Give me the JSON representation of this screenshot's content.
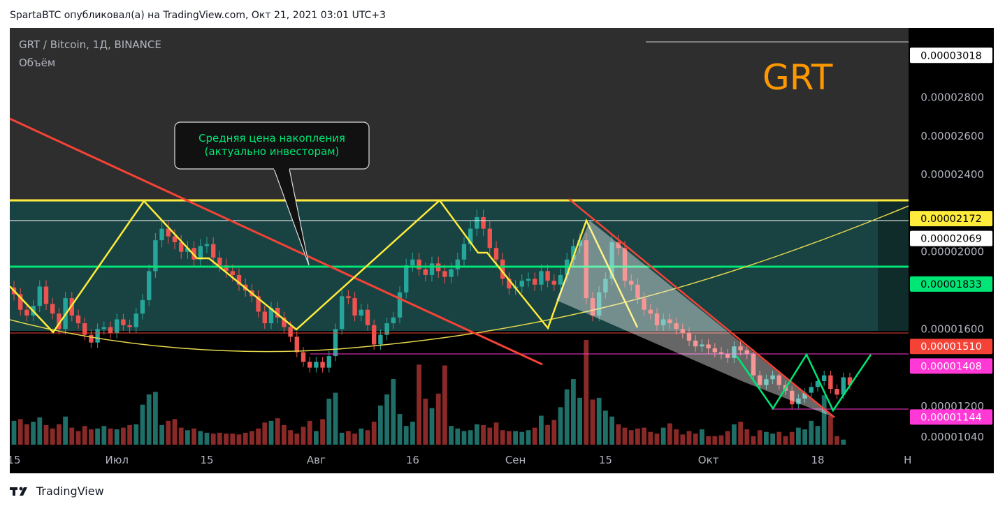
{
  "header": {
    "publish_line": "SpartaBTC опубликовал(а) на TradingView.com, Окт 21, 2021 03:01 UTC+3"
  },
  "chart": {
    "symbol_line": "GRT / Bitcoin, 1Д, BINANCE",
    "volume_label": "Объём",
    "big_label": "GRT",
    "callout_line1": "Средняя цена накопления",
    "callout_line2": "(актуально инвесторам)"
  },
  "footer": {
    "brand": "TradingView"
  },
  "colors": {
    "background": "#000000",
    "zone": "#2b7a78",
    "upper_band": "#2e2e2e",
    "up": "#26a69a",
    "down": "#ef5350",
    "yellow": "#ffeb3b",
    "green_line": "#00e676",
    "red_trend": "#f44336",
    "pink": "#ff38d6",
    "big_label": "#ff9800",
    "callout_text": "#00e676"
  },
  "chart_data": {
    "type": "candlestick",
    "y_range": [
      9.9e-06,
      3.16e-05
    ],
    "x_axis_labels": [
      {
        "label": "15",
        "day": 0
      },
      {
        "label": "Июл",
        "day": 16
      },
      {
        "label": "15",
        "day": 30
      },
      {
        "label": "Авг",
        "day": 47
      },
      {
        "label": "16",
        "day": 62
      },
      {
        "label": "Сен",
        "day": 78
      },
      {
        "label": "15",
        "day": 92
      },
      {
        "label": "Окт",
        "day": 108
      },
      {
        "label": "18",
        "day": 125
      },
      {
        "label": "Н",
        "day": 139
      }
    ],
    "y_axis_ticks": [
      {
        "label": "0.00002800",
        "value": 2.8e-05
      },
      {
        "label": "0.00002600",
        "value": 2.6e-05
      },
      {
        "label": "0.00002400",
        "value": 2.4e-05
      },
      {
        "label": "0.00002000",
        "value": 2e-05
      },
      {
        "label": "0.00001600",
        "value": 1.6e-05
      },
      {
        "label": "0.00001200",
        "value": 1.2e-05
      },
      {
        "label": "0.00001040",
        "value": 1.04e-05
      }
    ],
    "price_markers": [
      {
        "label": "0.00003018",
        "value": 3.018e-05,
        "bg": "#ffffff",
        "fg": "#000000"
      },
      {
        "label": "0.00002172",
        "value": 2.172e-05,
        "bg": "#ffeb3b",
        "fg": "#000000"
      },
      {
        "label": "0.00002069",
        "value": 2.069e-05,
        "bg": "#ffffff",
        "fg": "#000000"
      },
      {
        "label": "0.00001833",
        "value": 1.833e-05,
        "bg": "#00e676",
        "fg": "#000000"
      },
      {
        "label": "0.00001510",
        "value": 1.51e-05,
        "bg": "#f44336",
        "fg": "#ffffff"
      },
      {
        "label": "0.00001408",
        "value": 1.408e-05,
        "bg": "#ff38d6",
        "fg": "#ffffff"
      },
      {
        "label": "0.00001144",
        "value": 1.144e-05,
        "bg": "#ff38d6",
        "fg": "#ffffff"
      }
    ],
    "closes": [
      1.78e-05,
      1.7e-05,
      1.67e-05,
      1.72e-05,
      1.82e-05,
      1.73e-05,
      1.68e-05,
      1.6e-05,
      1.76e-05,
      1.67e-05,
      1.63e-05,
      1.57e-05,
      1.53e-05,
      1.6e-05,
      1.61e-05,
      1.58e-05,
      1.65e-05,
      1.62e-05,
      1.61e-05,
      1.68e-05,
      1.75e-05,
      1.9e-05,
      2.06e-05,
      2.12e-05,
      2.08e-05,
      2.05e-05,
      2e-05,
      2.02e-05,
      1.96e-05,
      2.03e-05,
      2.04e-05,
      1.97e-05,
      1.93e-05,
      1.9e-05,
      1.88e-05,
      1.83e-05,
      1.8e-05,
      1.77e-05,
      1.69e-05,
      1.63e-05,
      1.71e-05,
      1.66e-05,
      1.61e-05,
      1.56e-05,
      1.48e-05,
      1.43e-05,
      1.4e-05,
      1.43e-05,
      1.4e-05,
      1.46e-05,
      1.6e-05,
      1.77e-05,
      1.76e-05,
      1.67e-05,
      1.7e-05,
      1.62e-05,
      1.52e-05,
      1.57e-05,
      1.63e-05,
      1.66e-05,
      1.79e-05,
      1.93e-05,
      1.96e-05,
      1.91e-05,
      1.88e-05,
      1.94e-05,
      1.9e-05,
      1.87e-05,
      1.91e-05,
      1.96e-05,
      2.04e-05,
      2.12e-05,
      2.18e-05,
      2.12e-05,
      2.02e-05,
      1.96e-05,
      1.86e-05,
      1.81e-05,
      1.82e-05,
      1.85e-05,
      1.86e-05,
      1.83e-05,
      1.9e-05,
      1.85e-05,
      1.83e-05,
      1.88e-05,
      1.96e-05,
      2.03e-05,
      2.06e-05,
      1.76e-05,
      1.67e-05,
      1.79e-05,
      1.86e-05,
      2.05e-05,
      2.02e-05,
      1.85e-05,
      1.83e-05,
      1.76e-05,
      1.7e-05,
      1.68e-05,
      1.62e-05,
      1.65e-05,
      1.63e-05,
      1.6e-05,
      1.58e-05,
      1.54e-05,
      1.51e-05,
      1.52e-05,
      1.5e-05,
      1.48e-05,
      1.47e-05,
      1.45e-05,
      1.51e-05,
      1.49e-05,
      1.47e-05,
      1.36e-05,
      1.31e-05,
      1.34e-05,
      1.36e-05,
      1.31e-05,
      1.28e-05,
      1.21e-05,
      1.24e-05,
      1.27e-05,
      1.3e-05,
      1.33e-05,
      1.36e-05,
      1.29e-05,
      1.26e-05,
      1.35e-05,
      1.31e-05
    ],
    "volumes": [
      28,
      30,
      24,
      27,
      32,
      23,
      19,
      24,
      33,
      20,
      16,
      22,
      18,
      19,
      22,
      19,
      18,
      20,
      23,
      24,
      47,
      59,
      62,
      23,
      28,
      30,
      20,
      17,
      19,
      16,
      14,
      13,
      14,
      13,
      13,
      12,
      14,
      16,
      19,
      26,
      28,
      31,
      23,
      17,
      13,
      21,
      28,
      16,
      30,
      54,
      61,
      14,
      16,
      13,
      19,
      17,
      27,
      46,
      59,
      77,
      36,
      22,
      27,
      94,
      54,
      43,
      60,
      93,
      22,
      19,
      16,
      17,
      24,
      23,
      20,
      26,
      17,
      16,
      16,
      15,
      17,
      20,
      34,
      23,
      29,
      44,
      65,
      77,
      55,
      123,
      53,
      55,
      40,
      33,
      24,
      20,
      17,
      19,
      20,
      15,
      13,
      20,
      25,
      18,
      12,
      16,
      13,
      18,
      10,
      10,
      11,
      16,
      24,
      27,
      18,
      10,
      17,
      15,
      13,
      15,
      10,
      15,
      20,
      18,
      28,
      22,
      58,
      34,
      10,
      6
    ]
  }
}
